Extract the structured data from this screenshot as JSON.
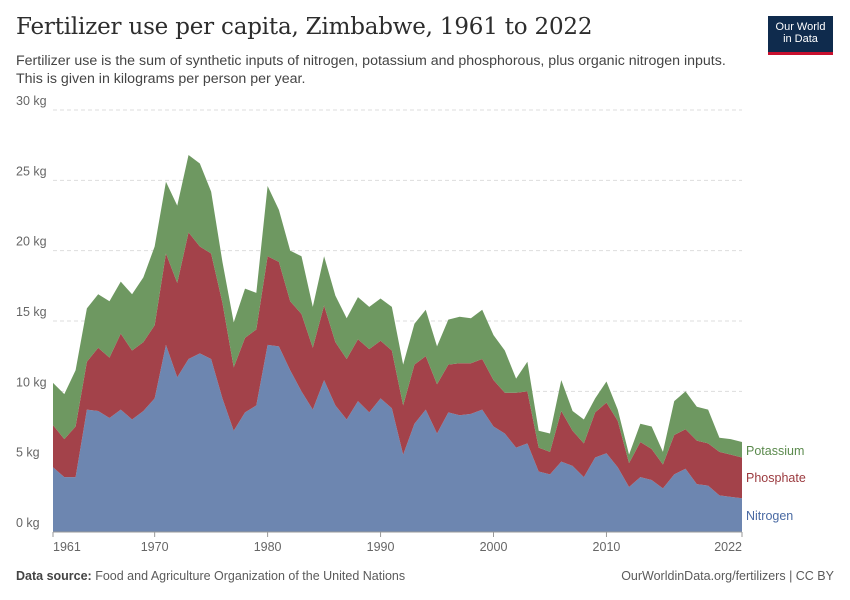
{
  "header": {
    "title": "Fertilizer use per capita, Zimbabwe, 1961 to 2022",
    "subtitle": "Fertilizer use is the sum of synthetic inputs of nitrogen, potassium and phosphorous, plus organic nitrogen inputs. This is given in kilograms per person per year.",
    "logo_line1": "Our World",
    "logo_line2": "in Data"
  },
  "footer": {
    "source_label": "Data source:",
    "source_text": "Food and Agriculture Organization of the United Nations",
    "url": "OurWorldinData.org/fertilizers | CC BY"
  },
  "colors": {
    "nitrogen": "#6d86b0",
    "phosphate": "#a3424a",
    "potassium": "#6e9861",
    "nitrogen_label": "#4a6aa3",
    "phosphate_label": "#9b3a3f",
    "potassium_label": "#5b8a4d",
    "grid": "#dddddd",
    "axis_text": "#666666"
  },
  "chart_data": {
    "type": "area",
    "stacked": true,
    "title": "Fertilizer use per capita, Zimbabwe, 1961 to 2022",
    "xlabel": "",
    "ylabel": "",
    "y_unit": " kg",
    "ylim": [
      0,
      30
    ],
    "yticks": [
      0,
      5,
      10,
      15,
      20,
      25,
      30
    ],
    "ytick_labels": [
      "0 kg",
      "5 kg",
      "10 kg",
      "15 kg",
      "20 kg",
      "25 kg",
      "30 kg"
    ],
    "xlim": [
      1961,
      2022
    ],
    "xticks": [
      1961,
      1970,
      1980,
      1990,
      2000,
      2010,
      2022
    ],
    "xtick_labels": [
      "1961",
      "1970",
      "1980",
      "1990",
      "2000",
      "2010",
      "2022"
    ],
    "grid": true,
    "legend_position": "right end labels",
    "x": [
      1961,
      1962,
      1963,
      1964,
      1965,
      1966,
      1967,
      1968,
      1969,
      1970,
      1971,
      1972,
      1973,
      1974,
      1975,
      1976,
      1977,
      1978,
      1979,
      1980,
      1981,
      1982,
      1983,
      1984,
      1985,
      1986,
      1987,
      1988,
      1989,
      1990,
      1991,
      1992,
      1993,
      1994,
      1995,
      1996,
      1997,
      1998,
      1999,
      2000,
      2001,
      2002,
      2003,
      2004,
      2005,
      2006,
      2007,
      2008,
      2009,
      2010,
      2011,
      2012,
      2013,
      2014,
      2015,
      2016,
      2017,
      2018,
      2019,
      2020,
      2021,
      2022
    ],
    "series": [
      {
        "name": "Nitrogen",
        "values": [
          4.6,
          3.9,
          3.9,
          8.7,
          8.6,
          8.1,
          8.7,
          8.0,
          8.6,
          9.5,
          13.3,
          11.0,
          12.3,
          12.7,
          12.3,
          9.5,
          7.2,
          8.5,
          9.0,
          13.3,
          13.2,
          11.5,
          10.0,
          8.7,
          10.8,
          9.0,
          8.0,
          9.3,
          8.5,
          9.5,
          8.8,
          5.5,
          7.7,
          8.7,
          7.0,
          8.5,
          8.3,
          8.4,
          8.7,
          7.5,
          7.0,
          6.0,
          6.3,
          4.3,
          4.1,
          5.0,
          4.7,
          3.9,
          5.3,
          5.6,
          4.6,
          3.2,
          3.9,
          3.7,
          3.1,
          4.1,
          4.5,
          3.4,
          3.3,
          2.6,
          2.5,
          2.4
        ]
      },
      {
        "name": "Phosphate",
        "values": [
          3.0,
          2.7,
          3.6,
          3.4,
          4.5,
          4.3,
          5.4,
          4.9,
          4.9,
          5.2,
          6.5,
          6.7,
          9.0,
          7.6,
          7.5,
          6.8,
          4.5,
          5.3,
          5.4,
          6.3,
          6.0,
          4.9,
          5.5,
          4.4,
          5.3,
          4.5,
          4.3,
          4.4,
          4.5,
          4.1,
          4.1,
          3.5,
          4.2,
          3.8,
          3.5,
          3.4,
          3.7,
          3.6,
          3.6,
          3.3,
          2.9,
          3.9,
          3.7,
          1.7,
          1.6,
          3.6,
          2.5,
          2.4,
          3.2,
          3.6,
          3.3,
          1.7,
          2.5,
          2.2,
          1.7,
          2.8,
          2.8,
          3.1,
          3.0,
          3.1,
          3.0,
          2.9
        ]
      },
      {
        "name": "Potassium",
        "values": [
          3.0,
          3.2,
          4.0,
          3.8,
          3.8,
          4.0,
          3.7,
          4.0,
          4.6,
          5.6,
          5.1,
          5.5,
          5.5,
          5.9,
          4.4,
          2.9,
          3.2,
          3.5,
          2.6,
          5.0,
          3.7,
          3.6,
          4.1,
          2.9,
          3.5,
          3.3,
          2.9,
          3.0,
          3.0,
          3.0,
          3.1,
          2.9,
          2.9,
          3.3,
          2.7,
          3.2,
          3.3,
          3.2,
          3.5,
          3.2,
          3.0,
          1.0,
          2.1,
          1.2,
          1.3,
          2.2,
          1.4,
          1.7,
          1.0,
          1.5,
          0.8,
          0.6,
          1.3,
          1.6,
          0.9,
          2.4,
          2.7,
          2.4,
          2.4,
          1.0,
          1.1,
          1.1
        ]
      }
    ]
  }
}
